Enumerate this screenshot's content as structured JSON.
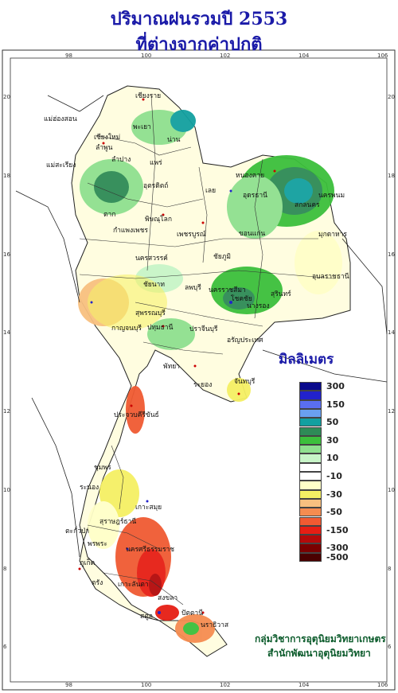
{
  "title_line1": "ปริมาณฝนรวมปี 2553",
  "title_line2": "ที่ต่างจากค่าปกติ",
  "unit_label": "มิลลิเมตร",
  "credit_line1": "กลุ่มวิชาการอุตุนิยมวิทยาเกษตร",
  "credit_line2": "สำนักพัฒนาอุตุนิยมวิทยา",
  "axes": {
    "lon_ticks": [
      "98",
      "100",
      "102",
      "104",
      "106"
    ],
    "lat_ticks": [
      "20",
      "18",
      "16",
      "14",
      "12",
      "10",
      "8",
      "6"
    ]
  },
  "legend": [
    {
      "label": "300",
      "color": "#0a0a8c"
    },
    {
      "label": "",
      "color": "#2222cc"
    },
    {
      "label": "150",
      "color": "#5a6ef0"
    },
    {
      "label": "",
      "color": "#6aa0f0"
    },
    {
      "label": "50",
      "color": "#12a0a0"
    },
    {
      "label": "",
      "color": "#2e8b57"
    },
    {
      "label": "30",
      "color": "#3cbf3c"
    },
    {
      "label": "",
      "color": "#8fe08f"
    },
    {
      "label": "10",
      "color": "#c8f5c8"
    },
    {
      "label": "",
      "color": "#ffffff"
    },
    {
      "label": "-10",
      "color": "#ffffff"
    },
    {
      "label": "",
      "color": "#ffffc8"
    },
    {
      "label": "-30",
      "color": "#f5f064"
    },
    {
      "label": "",
      "color": "#f8c080"
    },
    {
      "label": "-50",
      "color": "#f58c50"
    },
    {
      "label": "",
      "color": "#f05a32"
    },
    {
      "label": "-150",
      "color": "#e61e14"
    },
    {
      "label": "",
      "color": "#b40a0a"
    },
    {
      "label": "-300",
      "color": "#7a0000"
    },
    {
      "label": "-500",
      "color": "#4a0000"
    }
  ],
  "places": [
    {
      "name": "เชียงราย"
    },
    {
      "name": "แม่ฮ่องสอน"
    },
    {
      "name": "พะเยา"
    },
    {
      "name": "น่าน"
    },
    {
      "name": "เชียงใหม่"
    },
    {
      "name": "ลำพูน"
    },
    {
      "name": "ลำปาง"
    },
    {
      "name": "แพร่"
    },
    {
      "name": "แม่สะเรียง"
    },
    {
      "name": "อุตรดิตถ์"
    },
    {
      "name": "ตาก"
    },
    {
      "name": "เลย"
    },
    {
      "name": "หนองคาย"
    },
    {
      "name": "อุดรธานี"
    },
    {
      "name": "สกลนคร"
    },
    {
      "name": "นครพนม"
    },
    {
      "name": "พิษณุโลก"
    },
    {
      "name": "กำแพงเพชร"
    },
    {
      "name": "เพชรบูรณ์"
    },
    {
      "name": "ขอนแก่น"
    },
    {
      "name": "มุกดาหาร"
    },
    {
      "name": "นครสวรรค์"
    },
    {
      "name": "ชัยภูมิ"
    },
    {
      "name": "อุบลราชธานี"
    },
    {
      "name": "ชัยนาท"
    },
    {
      "name": "ลพบุรี"
    },
    {
      "name": "นครราชสีมา"
    },
    {
      "name": "โชคชัย"
    },
    {
      "name": "นางรอง"
    },
    {
      "name": "สุรินทร์"
    },
    {
      "name": "สุพรรณบุรี"
    },
    {
      "name": "กาญจนบุรี"
    },
    {
      "name": "ปทุมธานี"
    },
    {
      "name": "ปราจีนบุรี"
    },
    {
      "name": "อรัญประเทศ"
    },
    {
      "name": "พัทยา"
    },
    {
      "name": "ระยอง"
    },
    {
      "name": "จันทบุรี"
    },
    {
      "name": "ประจวบคีรีขันธ์"
    },
    {
      "name": "ชุมพร"
    },
    {
      "name": "ระนอง"
    },
    {
      "name": "เกาะสมุย"
    },
    {
      "name": "สุราษฎร์ธานี"
    },
    {
      "name": "ตะกั่วป่า"
    },
    {
      "name": "พรพระ"
    },
    {
      "name": "นครศรีธรรมราช"
    },
    {
      "name": "ภูเก็ต"
    },
    {
      "name": "เกาะลันตา"
    },
    {
      "name": "ตรัง"
    },
    {
      "name": "สงขลา"
    },
    {
      "name": "ปัตตานี"
    },
    {
      "name": "นราธิวาส"
    },
    {
      "name": "สตูล"
    }
  ]
}
